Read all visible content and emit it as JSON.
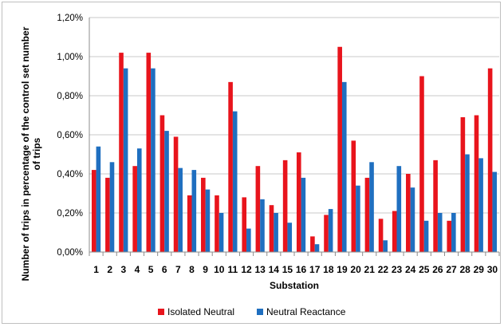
{
  "chart_data": {
    "type": "bar",
    "title": "",
    "xlabel": "Substation",
    "ylabel_lines": [
      "Number of trips in percentage of the control set number",
      "of trips"
    ],
    "ylim": [
      0,
      1.2
    ],
    "yticks": [
      0,
      0.2,
      0.4,
      0.6,
      0.8,
      1.0,
      1.2
    ],
    "ytick_labels": [
      "0,00%",
      "0,20%",
      "0,40%",
      "0,60%",
      "0,80%",
      "1,00%",
      "1,20%"
    ],
    "grid": "horizontal",
    "legend": "bottom",
    "categories": [
      "1",
      "2",
      "3",
      "4",
      "5",
      "6",
      "7",
      "8",
      "9",
      "10",
      "11",
      "12",
      "13",
      "14",
      "15",
      "16",
      "17",
      "18",
      "19",
      "20",
      "21",
      "22",
      "23",
      "24",
      "25",
      "26",
      "27",
      "28",
      "29",
      "30"
    ],
    "series": [
      {
        "name": "Isolated Neutral",
        "color": "#e8141c",
        "values": [
          0.42,
          0.38,
          1.02,
          0.44,
          1.02,
          0.7,
          0.59,
          0.29,
          0.38,
          0.29,
          0.87,
          0.28,
          0.44,
          0.24,
          0.47,
          0.51,
          0.08,
          0.19,
          1.05,
          0.57,
          0.38,
          0.17,
          0.21,
          0.4,
          0.9,
          0.47,
          0.16,
          0.69,
          0.7,
          0.94
        ]
      },
      {
        "name": "Neutral Reactance",
        "color": "#1f6fc0",
        "values": [
          0.54,
          0.46,
          0.94,
          0.53,
          0.94,
          0.62,
          0.43,
          0.42,
          0.32,
          0.2,
          0.72,
          0.12,
          0.27,
          0.2,
          0.15,
          0.38,
          0.04,
          0.22,
          0.87,
          0.34,
          0.46,
          0.06,
          0.44,
          0.33,
          0.16,
          0.2,
          0.2,
          0.5,
          0.48,
          0.41
        ]
      }
    ]
  }
}
